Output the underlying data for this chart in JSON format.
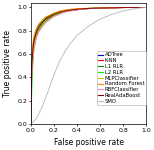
{
  "title": "",
  "xlabel": "False positive rate",
  "ylabel": "True positive rate",
  "xlim": [
    0,
    1.0
  ],
  "ylim": [
    0,
    1.05
  ],
  "xticks": [
    0.0,
    0.2,
    0.4,
    0.6,
    0.8,
    1.0
  ],
  "yticks": [
    0.0,
    0.2,
    0.4,
    0.6,
    0.8,
    1.0
  ],
  "legend_labels": [
    "ADTree",
    "K-NN",
    "L1 RLR",
    "L2 RLR",
    "MLPClassifier",
    "Random Forest",
    "RBFClassifier",
    "RealAdaBoost",
    "SMO"
  ],
  "legend_colors": [
    "#0000cc",
    "#ff0000",
    "#008800",
    "#00ee00",
    "#cccc00",
    "#ff8800",
    "#ff88cc",
    "#880000",
    "#bbbbbb"
  ],
  "curves": {
    "ADTree": {
      "color": "#0000cc",
      "x": [
        0.0,
        0.005,
        0.01,
        0.02,
        0.03,
        0.05,
        0.07,
        0.1,
        0.13,
        0.16,
        0.2,
        0.25,
        0.3,
        0.4,
        0.5,
        0.6,
        0.7,
        0.8,
        0.9,
        1.0
      ],
      "y": [
        0.0,
        0.3,
        0.5,
        0.65,
        0.72,
        0.79,
        0.83,
        0.87,
        0.9,
        0.92,
        0.94,
        0.96,
        0.97,
        0.98,
        0.99,
        0.995,
        0.997,
        0.999,
        1.0,
        1.0
      ]
    },
    "K-NN": {
      "color": "#ff0000",
      "x": [
        0.0,
        0.005,
        0.01,
        0.02,
        0.03,
        0.05,
        0.07,
        0.1,
        0.13,
        0.16,
        0.2,
        0.25,
        0.3,
        0.4,
        0.5,
        0.6,
        0.7,
        0.8,
        0.9,
        1.0
      ],
      "y": [
        0.0,
        0.28,
        0.46,
        0.6,
        0.68,
        0.76,
        0.81,
        0.85,
        0.88,
        0.91,
        0.93,
        0.95,
        0.97,
        0.98,
        0.99,
        0.993,
        0.996,
        0.998,
        1.0,
        1.0
      ]
    },
    "L1 RLR": {
      "color": "#008800",
      "x": [
        0.0,
        0.005,
        0.01,
        0.02,
        0.03,
        0.05,
        0.07,
        0.1,
        0.13,
        0.16,
        0.2,
        0.25,
        0.3,
        0.4,
        0.5,
        0.6,
        0.7,
        0.8,
        0.9,
        1.0
      ],
      "y": [
        0.0,
        0.32,
        0.52,
        0.67,
        0.74,
        0.81,
        0.85,
        0.88,
        0.91,
        0.93,
        0.95,
        0.96,
        0.97,
        0.985,
        0.992,
        0.996,
        0.998,
        0.999,
        1.0,
        1.0
      ]
    },
    "L2 RLR": {
      "color": "#00ee00",
      "x": [
        0.0,
        0.005,
        0.01,
        0.02,
        0.03,
        0.05,
        0.07,
        0.1,
        0.13,
        0.16,
        0.2,
        0.25,
        0.3,
        0.4,
        0.5,
        0.6,
        0.7,
        0.8,
        0.9,
        1.0
      ],
      "y": [
        0.0,
        0.1,
        0.3,
        0.55,
        0.65,
        0.75,
        0.8,
        0.85,
        0.88,
        0.9,
        0.93,
        0.95,
        0.97,
        0.985,
        0.992,
        0.996,
        0.998,
        0.999,
        1.0,
        1.0
      ]
    },
    "MLPClassifier": {
      "color": "#cccc00",
      "x": [
        0.0,
        0.005,
        0.01,
        0.02,
        0.03,
        0.05,
        0.07,
        0.1,
        0.13,
        0.16,
        0.2,
        0.25,
        0.3,
        0.4,
        0.5,
        0.6,
        0.7,
        0.8,
        0.9,
        1.0
      ],
      "y": [
        0.0,
        0.28,
        0.48,
        0.63,
        0.7,
        0.78,
        0.82,
        0.86,
        0.89,
        0.92,
        0.94,
        0.96,
        0.97,
        0.985,
        0.992,
        0.995,
        0.997,
        0.999,
        1.0,
        1.0
      ]
    },
    "Random Forest": {
      "color": "#ff8800",
      "x": [
        0.0,
        0.005,
        0.01,
        0.02,
        0.03,
        0.05,
        0.07,
        0.1,
        0.13,
        0.16,
        0.2,
        0.25,
        0.3,
        0.4,
        0.5,
        0.6,
        0.7,
        0.8,
        0.9,
        1.0
      ],
      "y": [
        0.0,
        0.35,
        0.55,
        0.7,
        0.76,
        0.82,
        0.86,
        0.89,
        0.92,
        0.93,
        0.95,
        0.97,
        0.98,
        0.99,
        0.993,
        0.996,
        0.998,
        0.999,
        1.0,
        1.0
      ]
    },
    "RBFClassifier": {
      "color": "#ff88cc",
      "x": [
        0.0,
        0.005,
        0.01,
        0.02,
        0.03,
        0.05,
        0.07,
        0.1,
        0.13,
        0.16,
        0.2,
        0.25,
        0.3,
        0.4,
        0.5,
        0.6,
        0.7,
        0.8,
        0.9,
        1.0
      ],
      "y": [
        0.0,
        0.25,
        0.42,
        0.58,
        0.66,
        0.74,
        0.79,
        0.83,
        0.87,
        0.89,
        0.92,
        0.94,
        0.96,
        0.98,
        0.99,
        0.994,
        0.997,
        0.999,
        1.0,
        1.0
      ]
    },
    "RealAdaBoost": {
      "color": "#880000",
      "x": [
        0.0,
        0.005,
        0.01,
        0.02,
        0.03,
        0.05,
        0.07,
        0.1,
        0.13,
        0.16,
        0.2,
        0.25,
        0.3,
        0.4,
        0.5,
        0.6,
        0.7,
        0.8,
        0.9,
        1.0
      ],
      "y": [
        0.0,
        0.3,
        0.5,
        0.65,
        0.72,
        0.79,
        0.83,
        0.87,
        0.9,
        0.92,
        0.94,
        0.96,
        0.97,
        0.985,
        0.992,
        0.995,
        0.997,
        0.999,
        1.0,
        1.0
      ]
    },
    "SMO": {
      "color": "#bbbbbb",
      "x": [
        0.0,
        0.01,
        0.02,
        0.05,
        0.1,
        0.15,
        0.2,
        0.25,
        0.3,
        0.35,
        0.4,
        0.5,
        0.6,
        0.7,
        0.8,
        0.9,
        1.0
      ],
      "y": [
        0.0,
        0.01,
        0.02,
        0.05,
        0.15,
        0.28,
        0.42,
        0.54,
        0.63,
        0.7,
        0.76,
        0.84,
        0.9,
        0.94,
        0.97,
        0.99,
        1.0
      ]
    }
  },
  "background_color": "#ffffff",
  "tick_fontsize": 4.5,
  "label_fontsize": 5.5,
  "legend_fontsize": 3.8
}
